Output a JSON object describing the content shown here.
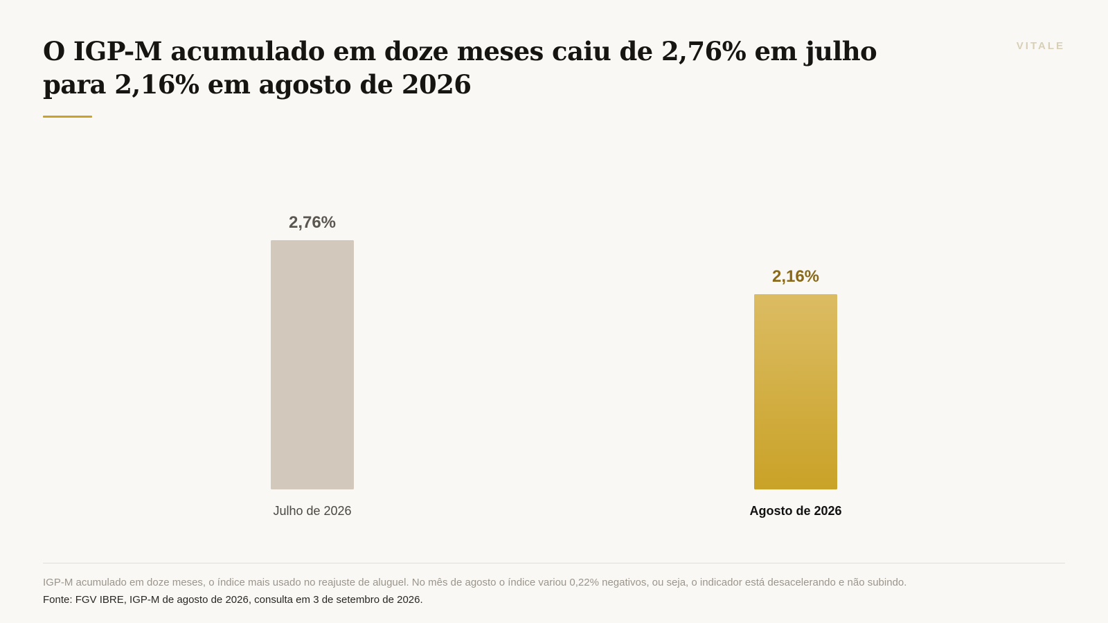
{
  "brand": "VITALE",
  "title": "O IGP-M acumulado em doze meses caiu de 2,76% em julho para 2,16% em agosto de 2026",
  "colors": {
    "accent": "#c9a227",
    "bar_muted": "#d2c9bc",
    "bar_highlight_top": "#dcbc63",
    "bar_highlight_bottom": "#c9a227",
    "value_muted": "#5b5650",
    "value_highlight": "#8a6a1a",
    "category_muted": "#4b4741",
    "category_highlight": "#111111"
  },
  "chart_data": {
    "type": "bar",
    "categories": [
      "Julho de 2026",
      "Agosto de 2026"
    ],
    "values": [
      2.76,
      2.16
    ],
    "value_labels": [
      "2,76%",
      "2,16%"
    ],
    "highlight_index": 1,
    "ylim": [
      0,
      2.76
    ],
    "grid": false,
    "legend": false,
    "title": "O IGP-M acumulado em doze meses caiu de 2,76% em julho para 2,16% em agosto de 2026",
    "xlabel": "",
    "ylabel": ""
  },
  "footer": {
    "note": "IGP-M acumulado em doze meses, o índice mais usado no reajuste de aluguel. No mês de agosto o índice variou 0,22% negativos, ou seja, o indicador está desacelerando e não subindo.",
    "source": "Fonte: FGV IBRE, IGP-M de agosto de 2026, consulta em 3 de setembro de 2026."
  }
}
